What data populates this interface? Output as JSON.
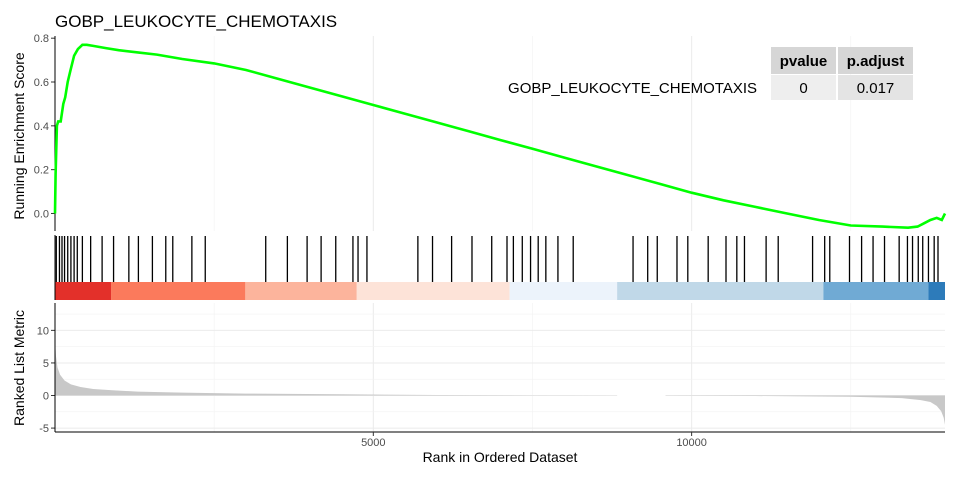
{
  "chart_data": {
    "type": "line",
    "title": "GOBP_LEUKOCYTE_CHEMOTAXIS",
    "xlabel": "Rank in Ordered Dataset",
    "xlim": [
      0,
      13980
    ],
    "x_ticks": [
      5000,
      10000
    ],
    "enrichment_panel": {
      "ylabel": "Running Enrichment Score",
      "ylim": [
        -0.08,
        0.81
      ],
      "y_ticks": [
        "0.0",
        "0.2",
        "0.4",
        "0.6",
        "0.8"
      ],
      "series": [
        {
          "name": "GOBP_LEUKOCYTE_CHEMOTAXIS",
          "color": "#00ff00",
          "x": [
            0,
            10,
            30,
            50,
            90,
            130,
            160,
            200,
            240,
            300,
            360,
            430,
            500,
            600,
            800,
            1000,
            1300,
            1600,
            2000,
            2500,
            3000,
            3500,
            4000,
            4500,
            5000,
            5500,
            6000,
            6500,
            7000,
            7500,
            8000,
            8500,
            9000,
            9500,
            10000,
            10500,
            11000,
            11500,
            12000,
            12500,
            13000,
            13400,
            13550,
            13650,
            13750,
            13850,
            13930,
            13980
          ],
          "y": [
            0.0,
            0.18,
            0.4,
            0.42,
            0.42,
            0.5,
            0.53,
            0.6,
            0.65,
            0.72,
            0.75,
            0.77,
            0.77,
            0.765,
            0.755,
            0.745,
            0.735,
            0.725,
            0.705,
            0.685,
            0.655,
            0.615,
            0.575,
            0.535,
            0.495,
            0.455,
            0.415,
            0.375,
            0.335,
            0.295,
            0.255,
            0.215,
            0.175,
            0.135,
            0.095,
            0.06,
            0.03,
            0.0,
            -0.03,
            -0.055,
            -0.06,
            -0.065,
            -0.06,
            -0.045,
            -0.03,
            -0.02,
            -0.03,
            0.0
          ]
        }
      ]
    },
    "hit_ranks": [
      20,
      70,
      110,
      150,
      200,
      250,
      300,
      350,
      430,
      560,
      740,
      920,
      1160,
      1310,
      1530,
      1740,
      1850,
      2150,
      2360,
      3310,
      3650,
      3960,
      4180,
      4410,
      4680,
      4760,
      4900,
      5700,
      5930,
      6230,
      6550,
      6860,
      7100,
      7200,
      7340,
      7470,
      7590,
      7710,
      7900,
      8140,
      9080,
      9310,
      9460,
      9770,
      9940,
      10260,
      10540,
      10710,
      10830,
      11170,
      11360,
      11900,
      12090,
      12170,
      12480,
      12670,
      12850,
      13030,
      13260,
      13390,
      13470,
      13560,
      13630,
      13720,
      13810,
      13870
    ],
    "metric_bands": [
      {
        "from": 0,
        "to": 880,
        "color": "#e3302a"
      },
      {
        "from": 880,
        "to": 2990,
        "color": "#fb7a5c"
      },
      {
        "from": 2990,
        "to": 4740,
        "color": "#fcb49c"
      },
      {
        "from": 4740,
        "to": 7140,
        "color": "#fde3d8"
      },
      {
        "from": 7140,
        "to": 8830,
        "color": "#ecf3fb"
      },
      {
        "from": 8830,
        "to": 12070,
        "color": "#c0d8e8"
      },
      {
        "from": 12070,
        "to": 13720,
        "color": "#70aad4"
      },
      {
        "from": 13720,
        "to": 13980,
        "color": "#2d7bba"
      }
    ],
    "ranked_metric_panel": {
      "ylabel": "Ranked List Metric",
      "ylim": [
        -5.6,
        14.2
      ],
      "y_ticks": [
        -5,
        0,
        5,
        10
      ],
      "color": "#c8c8c8",
      "x": [
        0,
        15,
        40,
        80,
        150,
        250,
        400,
        600,
        900,
        1300,
        2000,
        3000,
        4500,
        6000,
        7500,
        8800,
        9600,
        11000,
        12500,
        13300,
        13600,
        13750,
        13850,
        13920,
        13960,
        13980
      ],
      "y": [
        8.5,
        6.0,
        4.3,
        3.2,
        2.3,
        1.7,
        1.3,
        1.0,
        0.8,
        0.6,
        0.45,
        0.3,
        0.18,
        0.08,
        0.02,
        0.0,
        -0.02,
        -0.08,
        -0.2,
        -0.4,
        -0.7,
        -1.0,
        -1.6,
        -2.4,
        -3.4,
        -4.5
      ],
      "gap": [
        8830,
        9590
      ]
    },
    "stats_table": {
      "headers": [
        "pvalue",
        "p.adjust"
      ],
      "row_label": "GOBP_LEUKOCYTE_CHEMOTAXIS",
      "row_label_color": "#00ff00",
      "values": [
        "0",
        "0.017"
      ]
    }
  }
}
